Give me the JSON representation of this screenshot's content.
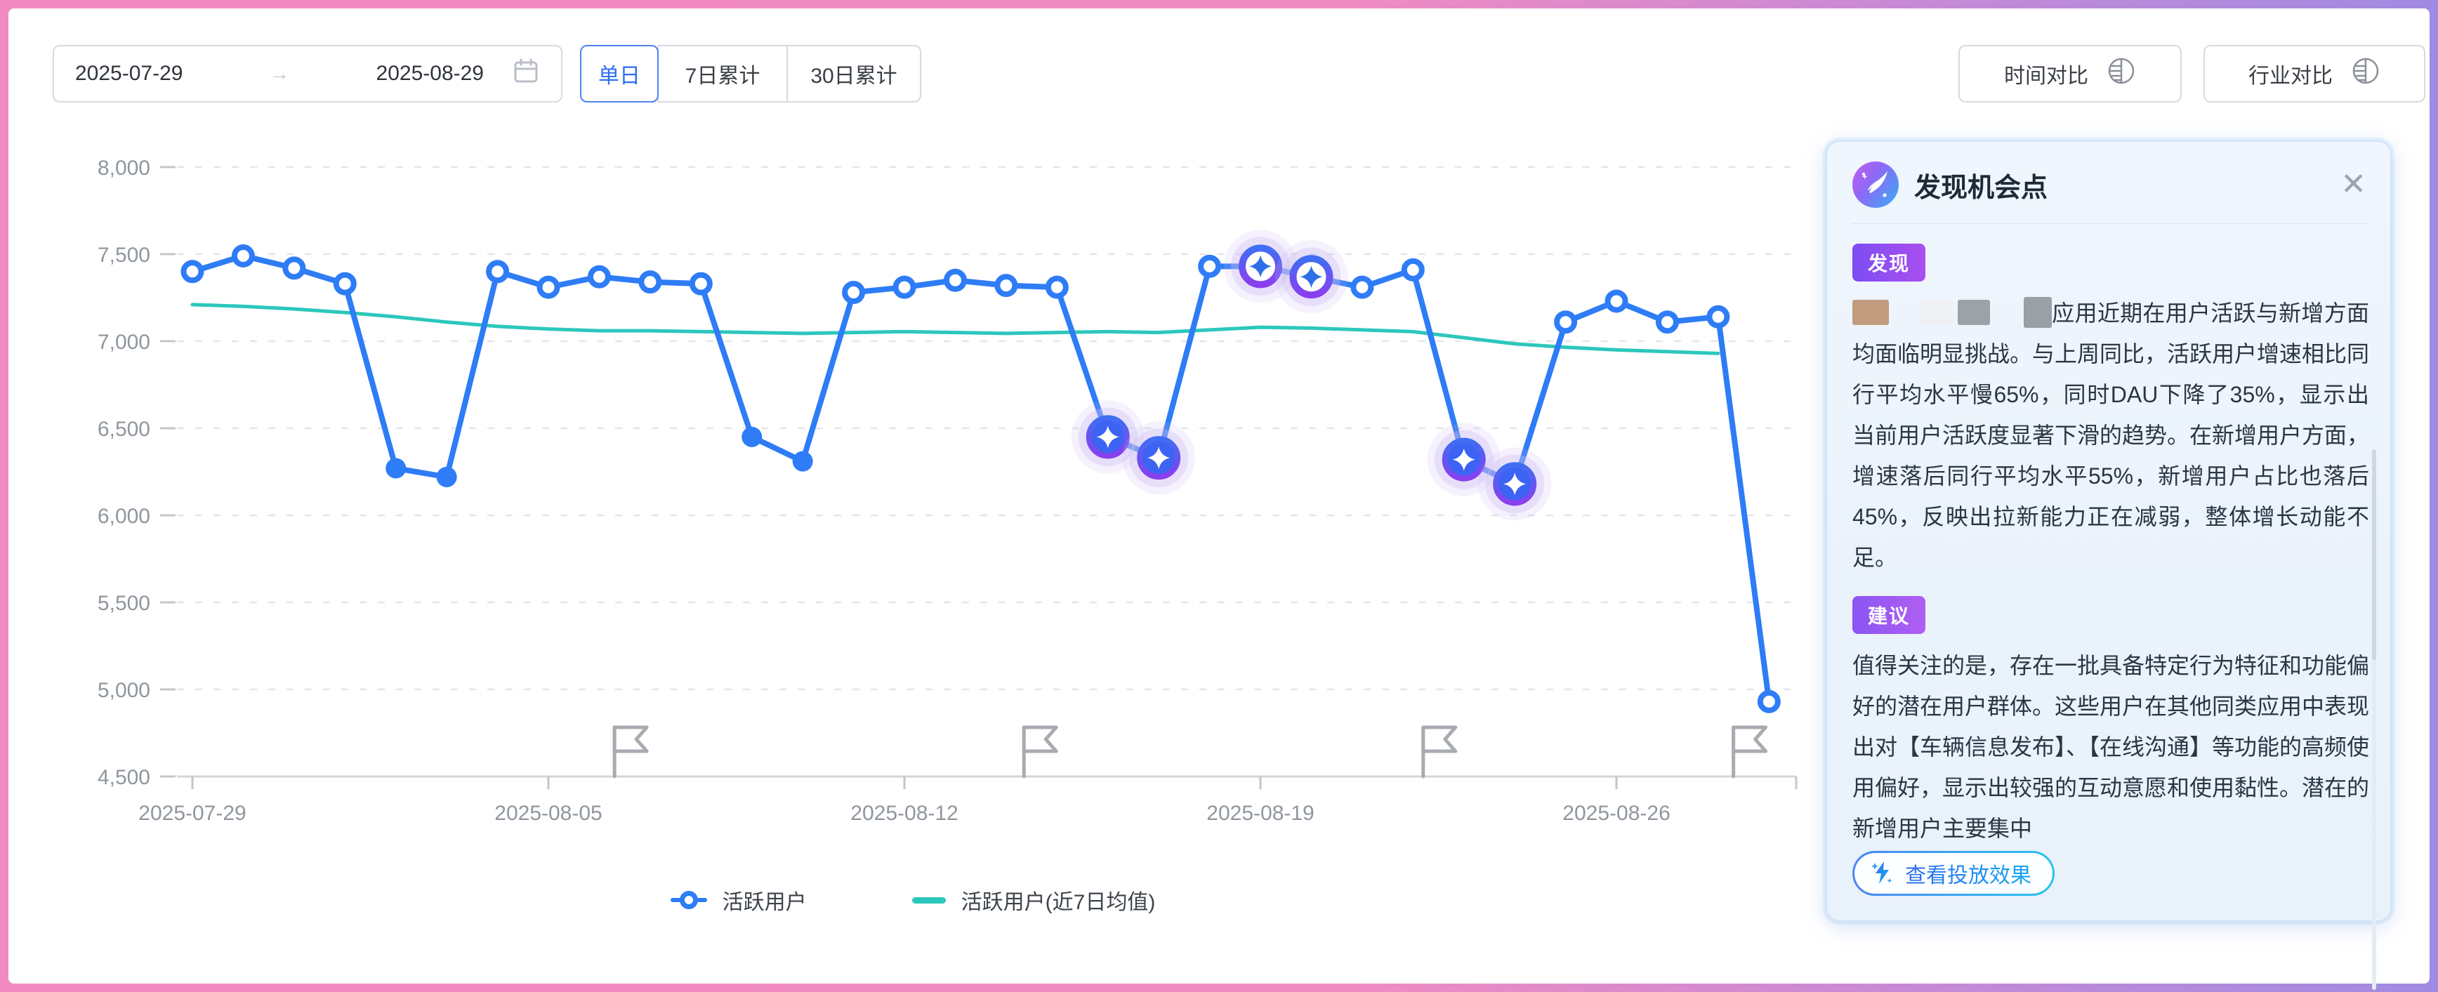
{
  "toolbar": {
    "date_range": {
      "start": "2025-07-29",
      "end": "2025-08-29",
      "separator": "→"
    },
    "granularity_tabs": [
      {
        "label": "单日",
        "active": true
      },
      {
        "label": "7日累计",
        "active": false
      },
      {
        "label": "30日累计",
        "active": false
      }
    ],
    "compare_buttons": [
      {
        "label": "时间对比"
      },
      {
        "label": "行业对比"
      }
    ]
  },
  "chart_data": {
    "type": "line",
    "title": "",
    "xlabel": "",
    "ylabel": "",
    "ylim": [
      4500,
      8000
    ],
    "grid": "horizontal-dashed",
    "legend_position": "bottom-center",
    "x": [
      "2025-07-29",
      "2025-07-30",
      "2025-07-31",
      "2025-08-01",
      "2025-08-02",
      "2025-08-03",
      "2025-08-04",
      "2025-08-05",
      "2025-08-06",
      "2025-08-07",
      "2025-08-08",
      "2025-08-09",
      "2025-08-10",
      "2025-08-11",
      "2025-08-12",
      "2025-08-13",
      "2025-08-14",
      "2025-08-15",
      "2025-08-16",
      "2025-08-17",
      "2025-08-18",
      "2025-08-19",
      "2025-08-20",
      "2025-08-21",
      "2025-08-22",
      "2025-08-23",
      "2025-08-24",
      "2025-08-25",
      "2025-08-26",
      "2025-08-27",
      "2025-08-28",
      "2025-08-29"
    ],
    "series": [
      {
        "name": "活跃用户",
        "color": "#2e7cf6",
        "values": [
          7400,
          7490,
          7420,
          7330,
          6270,
          6220,
          7400,
          7310,
          7370,
          7340,
          7330,
          6450,
          6310,
          7280,
          7310,
          7350,
          7320,
          7310,
          6450,
          6330,
          7430,
          7430,
          7370,
          7310,
          7410,
          6320,
          6180,
          7110,
          7230,
          7110,
          7140,
          4930
        ]
      },
      {
        "name": "活跃用户(近7日均值)",
        "color": "#2cc7bc",
        "values": [
          7210,
          7200,
          7185,
          7165,
          7140,
          7110,
          7085,
          7070,
          7060,
          7060,
          7055,
          7050,
          7045,
          7050,
          7055,
          7050,
          7045,
          7050,
          7055,
          7050,
          7065,
          7080,
          7075,
          7065,
          7055,
          7020,
          6985,
          6965,
          6950,
          6940,
          6930,
          null
        ]
      }
    ],
    "y_ticks": [
      {
        "label": "8,000",
        "value": 8000
      },
      {
        "label": "7,500",
        "value": 7500
      },
      {
        "label": "7,000",
        "value": 7000
      },
      {
        "label": "6,500",
        "value": 6500
      },
      {
        "label": "6,000",
        "value": 6000
      },
      {
        "label": "5,500",
        "value": 5500
      },
      {
        "label": "5,000",
        "value": 5000
      },
      {
        "label": "4,500",
        "value": 4500
      }
    ],
    "x_ticks": [
      {
        "label": "2025-07-29",
        "day_index": 0
      },
      {
        "label": "2025-08-05",
        "day_index": 7
      },
      {
        "label": "2025-08-12",
        "day_index": 14
      },
      {
        "label": "2025-08-19",
        "day_index": 21
      },
      {
        "label": "2025-08-26",
        "day_index": 28
      }
    ],
    "solid_point_indices": [
      4,
      5,
      11,
      12
    ],
    "sparkle_points": [
      {
        "index": 18,
        "date": "2025-08-16",
        "variant": "blue"
      },
      {
        "index": 19,
        "date": "2025-08-17",
        "variant": "blue"
      },
      {
        "index": 21,
        "date": "2025-08-19",
        "variant": "white"
      },
      {
        "index": 22,
        "date": "2025-08-20",
        "variant": "white"
      },
      {
        "index": 25,
        "date": "2025-08-23",
        "variant": "blue"
      },
      {
        "index": 26,
        "date": "2025-08-24",
        "variant": "blue"
      }
    ],
    "flags": [
      {
        "day_index": 8.3
      },
      {
        "day_index": 16.35
      },
      {
        "day_index": 24.2
      },
      {
        "day_index": 30.3
      }
    ]
  },
  "insight_panel": {
    "title": "发现机会点",
    "close_icon": "✕",
    "sections": [
      {
        "badge": "发现",
        "redacted_prefix": true,
        "text": "应用近期在用户活跃与新增方面均面临明显挑战。与上周同比，活跃用户增速相比同行平均水平慢65%，同时DAU下降了35%，显示出当前用户活跃度显著下滑的趋势。在新增用户方面，增速落后同行平均水平55%，新增用户占比也落后45%，反映出拉新能力正在减弱，整体增长动能不足。"
      },
      {
        "badge": "建议",
        "text": "值得关注的是，存在一批具备特定行为特征和功能偏好的潜在用户群体。这些用户在其他同类应用中表现出对【车辆信息发布】、【在线沟通】等功能的高频使用偏好，显示出较强的互动意愿和使用黏性。潜在的新增用户主要集中"
      }
    ],
    "action_button": {
      "label": "查看投放效果"
    }
  },
  "colors": {
    "series_active": "#2e7cf6",
    "series_avg": "#2cc7bc",
    "badge_gradient_from": "#7c4df2",
    "badge_gradient_to": "#aa4ff0",
    "sparkle_ring_from": "#3f6ef3",
    "sparkle_ring_to": "#8a3fee",
    "frame_pink": "#f18ac0",
    "frame_purple": "#a08ae2",
    "axis_text": "#8f969e"
  }
}
